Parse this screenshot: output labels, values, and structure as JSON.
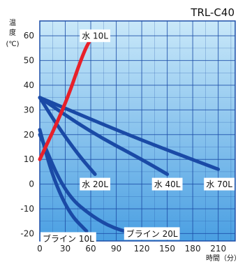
{
  "chart_data": {
    "type": "line",
    "title": "TRL-C40",
    "ylabel_chars": [
      "温",
      "度"
    ],
    "yunit": "(℃)",
    "xlabel": "時間（分）",
    "xlim": [
      0,
      230
    ],
    "ylim": [
      -23,
      66
    ],
    "xticks": [
      0,
      30,
      60,
      90,
      120,
      150,
      180,
      210
    ],
    "yticks": [
      60,
      50,
      40,
      30,
      20,
      10,
      0,
      -10,
      -20
    ],
    "grid": true,
    "background_gradient": [
      "#c9e8f9",
      "#4a9fe2"
    ],
    "series": [
      {
        "name": "水 10L",
        "color": "#e8202a",
        "points": [
          [
            0,
            10
          ],
          [
            30,
            32
          ],
          [
            50,
            52
          ],
          [
            60,
            59
          ],
          [
            66,
            60
          ]
        ],
        "label_at": [
          65,
          60
        ]
      },
      {
        "name": "水 20L",
        "color": "#1a4aa6",
        "points": [
          [
            0,
            35
          ],
          [
            20,
            24
          ],
          [
            45,
            12
          ],
          [
            65,
            4
          ]
        ],
        "label_at": [
          65,
          0
        ]
      },
      {
        "name": "水 40L",
        "color": "#1a4aa6",
        "points": [
          [
            0,
            35
          ],
          [
            60,
            21
          ],
          [
            120,
            10
          ],
          [
            150,
            4
          ]
        ],
        "label_at": [
          150,
          0
        ]
      },
      {
        "name": "水 70L",
        "color": "#1a4aa6",
        "points": [
          [
            0,
            35
          ],
          [
            110,
            19
          ],
          [
            210,
            6
          ]
        ],
        "label_at": [
          215,
          0
        ]
      },
      {
        "name": "ブライン 10L",
        "color": "#1a4aa6",
        "points": [
          [
            0,
            22
          ],
          [
            15,
            3
          ],
          [
            35,
            -12
          ],
          [
            55,
            -19
          ]
        ],
        "label_at": [
          10,
          -22
        ]
      },
      {
        "name": "ブライン 20L",
        "color": "#1a4aa6",
        "points": [
          [
            0,
            20
          ],
          [
            30,
            -4
          ],
          [
            65,
            -14
          ],
          [
            95,
            -19
          ],
          [
            130,
            -21
          ]
        ],
        "label_at": [
          132,
          -20
        ]
      }
    ]
  }
}
